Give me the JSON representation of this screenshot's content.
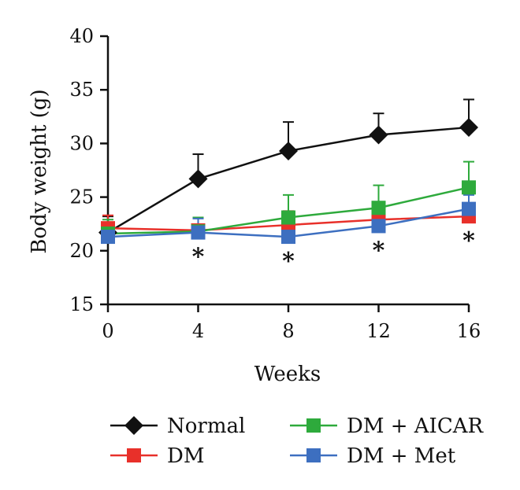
{
  "chart_data": {
    "type": "line",
    "xlabel": "Weeks",
    "ylabel": "Body weight (g)",
    "x": [
      0,
      4,
      8,
      12,
      16
    ],
    "xlim": [
      0,
      16
    ],
    "ylim": [
      15,
      40
    ],
    "xticks": [
      "0",
      "4",
      "8",
      "12",
      "16"
    ],
    "yticks": [
      "15",
      "20",
      "25",
      "30",
      "35",
      "40"
    ],
    "legend_position": "bottom",
    "grid": false,
    "series": [
      {
        "name": "Normal",
        "color": "#111111",
        "marker": "diamond",
        "values": [
          21.7,
          26.7,
          29.3,
          30.8,
          31.5
        ],
        "err": [
          1.5,
          2.3,
          2.7,
          2.0,
          2.6
        ]
      },
      {
        "name": "DM",
        "color": "#e8302a",
        "marker": "square",
        "values": [
          22.1,
          21.9,
          22.4,
          22.9,
          23.2
        ],
        "err": [
          1.2,
          1.2,
          1.3,
          1.2,
          1.1
        ]
      },
      {
        "name": "DM + AICAR",
        "color": "#2eaa3c",
        "marker": "square",
        "values": [
          21.6,
          21.8,
          23.1,
          24.0,
          25.9
        ],
        "err": [
          1.3,
          1.3,
          2.1,
          2.1,
          2.4
        ]
      },
      {
        "name": "DM + Met",
        "color": "#3d6fc0",
        "marker": "square",
        "values": [
          21.3,
          21.7,
          21.3,
          22.3,
          23.9
        ],
        "err": [
          1.2,
          1.3,
          1.2,
          1.2,
          1.3
        ]
      }
    ],
    "annotations": [
      {
        "x": 4,
        "text": "*"
      },
      {
        "x": 8,
        "text": "*"
      },
      {
        "x": 12,
        "text": "*"
      },
      {
        "x": 16,
        "text": "*"
      }
    ]
  }
}
